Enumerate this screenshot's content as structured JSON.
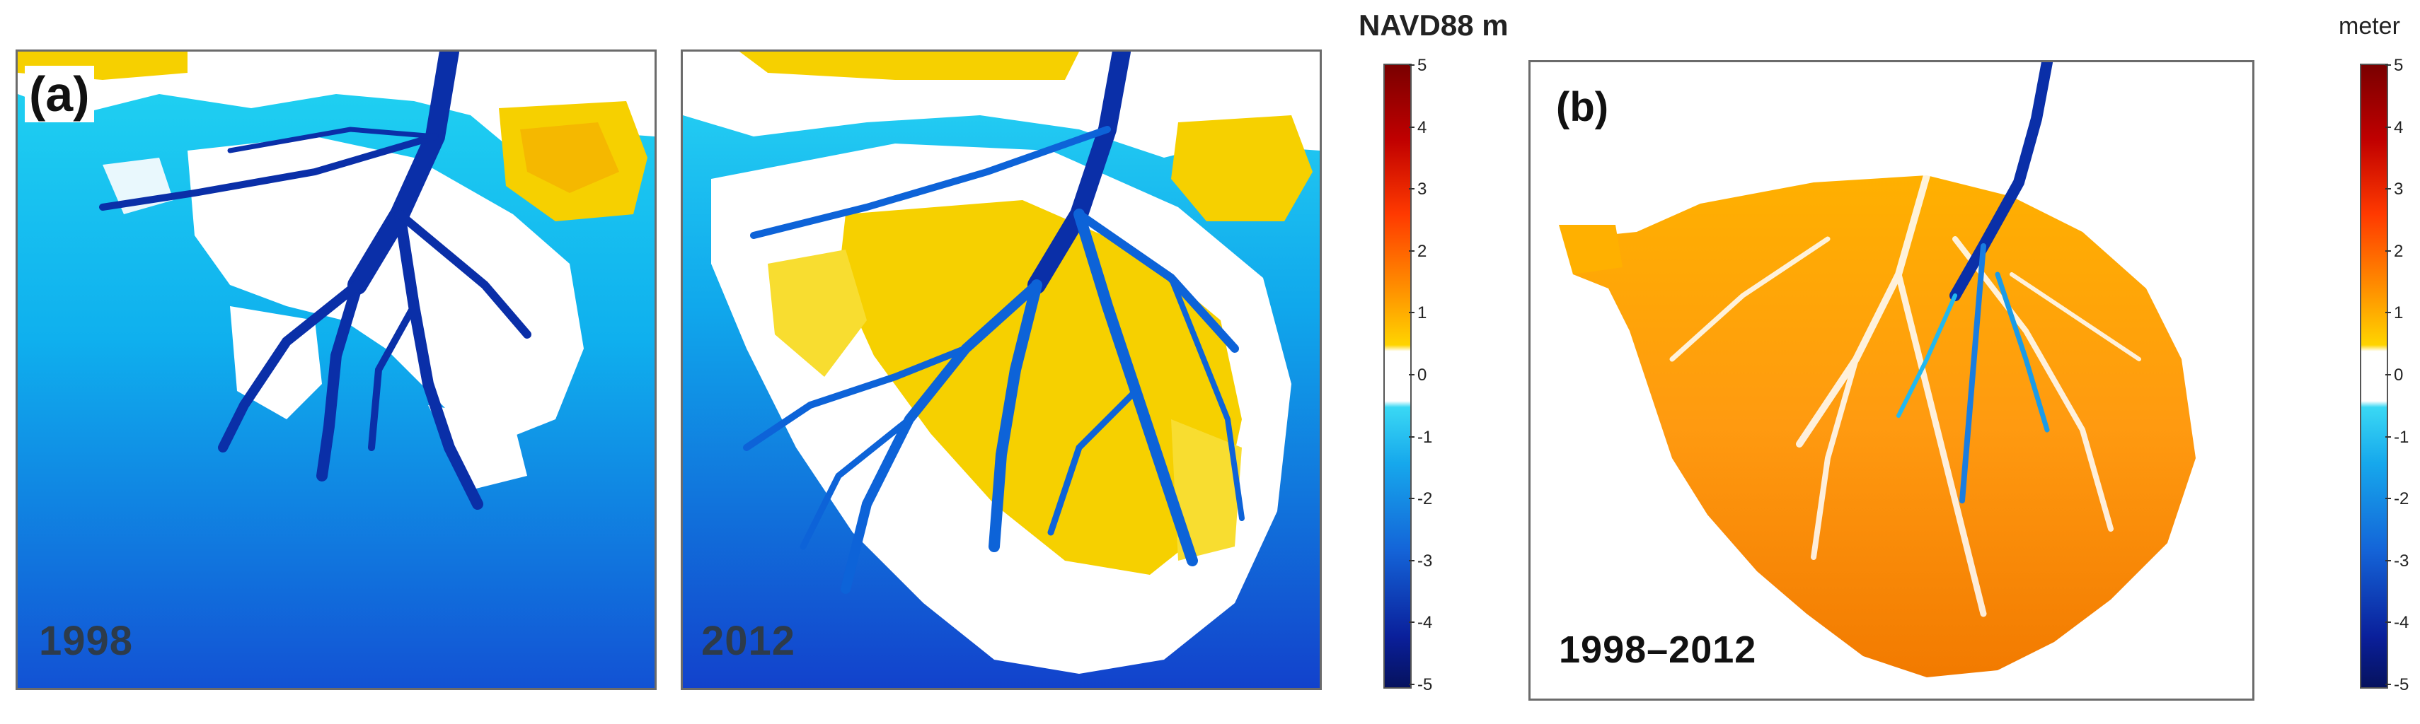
{
  "panel_a": {
    "label": "(a)",
    "maps": [
      {
        "year": "1998"
      },
      {
        "year": "2012"
      }
    ]
  },
  "colorbar_a": {
    "title": "NAVD88 m",
    "ticks": [
      "5",
      "4",
      "3",
      "2",
      "1",
      "0",
      "-1",
      "-2",
      "-3",
      "-4",
      "-5"
    ]
  },
  "panel_b": {
    "label": "(b)",
    "period": "1998–2012"
  },
  "colorbar_b": {
    "title": "meter",
    "ticks": [
      "5",
      "4",
      "3",
      "2",
      "1",
      "0",
      "-1",
      "-2",
      "-3",
      "-4",
      "-5"
    ]
  },
  "colors": {
    "deep_water": "#1238b8",
    "shallow_water": "#10c8f0",
    "land_low": "#f6d000",
    "land_high": "#ff8a00",
    "channel": "#0a1f8a",
    "background": "#ffffff"
  }
}
